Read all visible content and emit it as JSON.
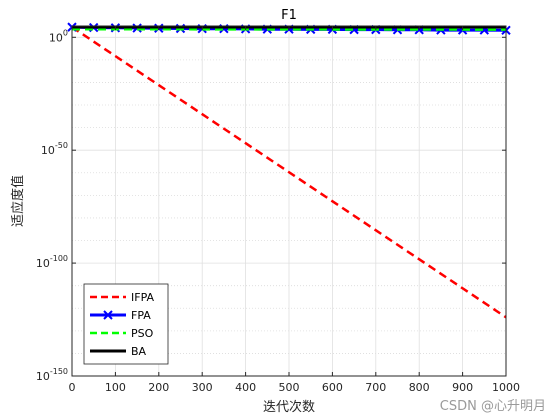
{
  "chart_data": {
    "type": "line",
    "title": "F1",
    "xlabel": "迭代次数",
    "ylabel": "适应度值",
    "xlim": [
      0,
      1000
    ],
    "ylim_log10": [
      -150,
      5
    ],
    "yscale": "log",
    "grid": true,
    "legend_position": "bottom-left",
    "x_ticks": [
      "0",
      "100",
      "200",
      "300",
      "400",
      "500",
      "600",
      "700",
      "800",
      "900",
      "1000"
    ],
    "y_ticks": [
      {
        "base": "10",
        "exp": "0"
      },
      {
        "base": "10",
        "exp": "-50"
      },
      {
        "base": "10",
        "exp": "-100"
      },
      {
        "base": "10",
        "exp": "-150"
      }
    ],
    "series": [
      {
        "name": "IFPA",
        "color": "#ff0000",
        "style": "dashed",
        "marker": "none",
        "x": [
          0,
          1000
        ],
        "log10_y": [
          4.5,
          -124
        ]
      },
      {
        "name": "FPA",
        "color": "#0000ff",
        "style": "solid",
        "marker": "x",
        "x": [
          0,
          50,
          100,
          150,
          200,
          250,
          300,
          350,
          400,
          450,
          500,
          550,
          600,
          650,
          700,
          750,
          800,
          850,
          900,
          950,
          1000
        ],
        "log10_y": [
          4.5,
          4.3,
          4.2,
          4.1,
          4.0,
          3.9,
          3.8,
          3.8,
          3.7,
          3.6,
          3.6,
          3.5,
          3.5,
          3.4,
          3.4,
          3.3,
          3.3,
          3.2,
          3.2,
          3.2,
          3.1
        ]
      },
      {
        "name": "PSO",
        "color": "#00ff00",
        "style": "dashed",
        "marker": "none",
        "x": [
          0,
          1000
        ],
        "log10_y": [
          3.6,
          3.4
        ]
      },
      {
        "name": "BA",
        "color": "#000000",
        "style": "solid",
        "marker": "none",
        "x": [
          0,
          1000
        ],
        "log10_y": [
          5,
          5
        ]
      }
    ]
  },
  "watermark": "CSDN @心升明月"
}
